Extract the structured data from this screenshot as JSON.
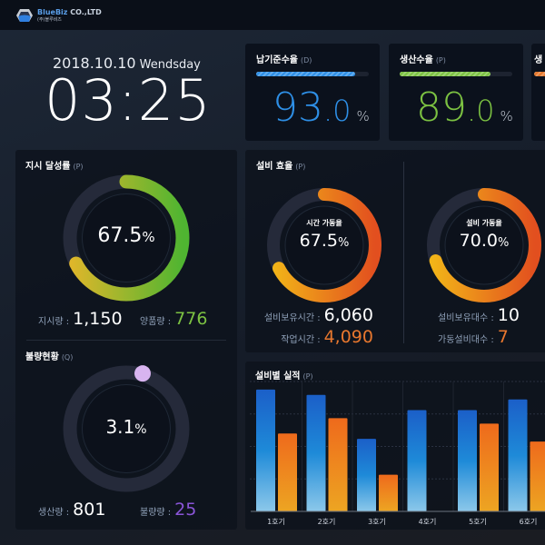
{
  "header": {
    "brand": "BlueBiz",
    "brand_suffix": "CO.,LTD",
    "brand_sub": "(주)블루비즈"
  },
  "clock": {
    "date": "2018.10.10",
    "weekday": "Wendsday",
    "time": "03:25"
  },
  "kpis": [
    {
      "title": "납기준수율",
      "tag": "(D)",
      "int": "93",
      "dec": ".0",
      "unit": "%",
      "percent": 93.0,
      "bar": 88,
      "color": "#2e8fe6"
    },
    {
      "title": "생산수율",
      "tag": "(P)",
      "int": "89",
      "dec": ".0",
      "unit": "%",
      "percent": 89.0,
      "bar": 81,
      "color": "#7cc242"
    },
    {
      "title": "생",
      "tag": "",
      "color": "#e5772b"
    }
  ],
  "achievement": {
    "title": "지시 달성률",
    "tag": "(P)",
    "value": "67.5",
    "unit": "%",
    "percent": 67.5,
    "colors": [
      "#e0b62a",
      "#4fb531"
    ],
    "stats": [
      {
        "label": "지시량 :",
        "value": "1,150",
        "color": "#ffffff"
      },
      {
        "label": "양품량 :",
        "value": "776",
        "color": "#7cc242"
      }
    ]
  },
  "defect": {
    "title": "불량현황",
    "tag": "(Q)",
    "value": "3.1",
    "unit": "%",
    "percent": 3.1,
    "color": "#d8b4f0",
    "stats": [
      {
        "label": "생산량 :",
        "value": "801",
        "color": "#ffffff"
      },
      {
        "label": "불량량 :",
        "value": "25",
        "color": "#8a55d8"
      }
    ]
  },
  "efficiency": {
    "title": "설비 효율",
    "tag": "(P)",
    "gauges": [
      {
        "label": "시간 가동율",
        "value": "67.5",
        "unit": "%",
        "percent": 67.5,
        "stats": [
          {
            "label": "설비보유시간 :",
            "value": "6,060",
            "color": "#ffffff"
          },
          {
            "label": "작업시간 :",
            "value": "4,090",
            "color": "#e8772e"
          }
        ]
      },
      {
        "label": "설비 가동율",
        "value": "70.0",
        "unit": "%",
        "percent": 70.0,
        "stats": [
          {
            "label": "설비보유대수 :",
            "value": "10",
            "color": "#ffffff"
          },
          {
            "label": "가동설비대수 :",
            "value": "7",
            "color": "#e8772e"
          }
        ]
      }
    ],
    "colors": [
      "#f2b418",
      "#e24f1f"
    ]
  },
  "chart_data": {
    "type": "bar",
    "title": "설비별 실적",
    "tag": "(P)",
    "categories": [
      "1호기",
      "2호기",
      "3호기",
      "4호기",
      "5호기",
      "6호기"
    ],
    "series": [
      {
        "values": [
          136,
          130,
          81,
          113,
          113,
          125
        ],
        "color": "#1f7fd4"
      },
      {
        "values": [
          87,
          104,
          41,
          0,
          98,
          78
        ],
        "color": "#ef7a1e"
      }
    ],
    "ylim": [
      0,
      145
    ],
    "grid": true
  }
}
